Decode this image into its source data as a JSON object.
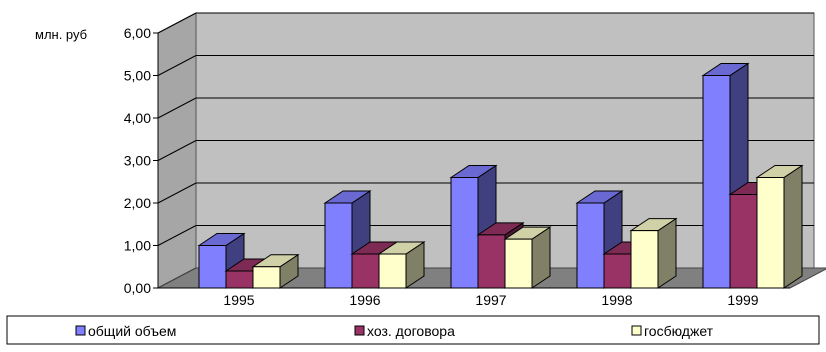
{
  "chart_data": {
    "type": "bar",
    "title": "",
    "xlabel": "",
    "ylabel": "млн. руб",
    "categories": [
      "1995",
      "1996",
      "1997",
      "1998",
      "1999"
    ],
    "ylim": [
      0,
      6
    ],
    "yticks": [
      "0,00",
      "1,00",
      "2,00",
      "3,00",
      "4,00",
      "5,00",
      "6,00"
    ],
    "grid": true,
    "legend_position": "bottom",
    "series": [
      {
        "name": "общий объем",
        "values": [
          1.0,
          2.0,
          2.6,
          2.0,
          5.0
        ],
        "color": "#8080ff"
      },
      {
        "name": "хоз. договора",
        "values": [
          0.4,
          0.8,
          1.25,
          0.8,
          2.2
        ],
        "color": "#993366"
      },
      {
        "name": "госбюджет",
        "values": [
          0.5,
          0.8,
          1.15,
          1.35,
          2.6
        ],
        "color": "#ffffcc"
      }
    ]
  }
}
